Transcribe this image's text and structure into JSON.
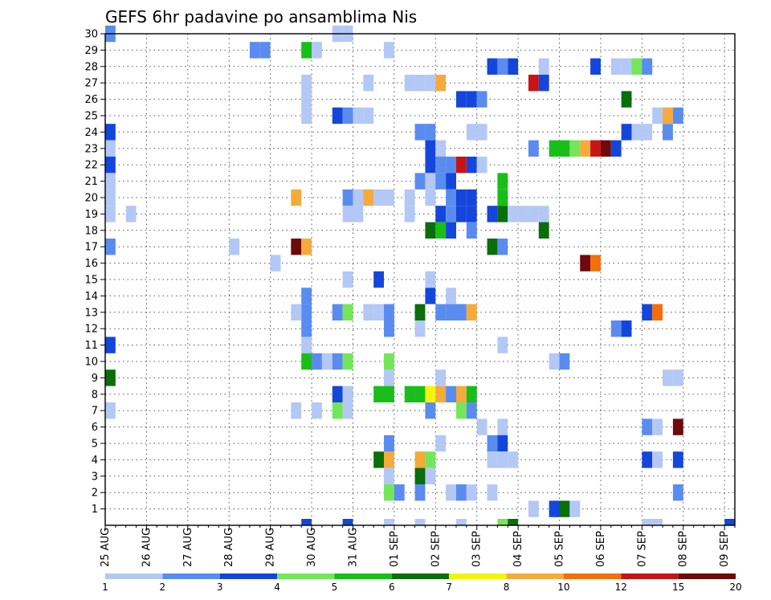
{
  "chart_data": {
    "type": "heatmap",
    "title": "GEFS 6hr padavine po ansamblima Nis",
    "x_ticks": [
      "25 AUG",
      "26 AUG",
      "27 AUG",
      "28 AUG",
      "29 AUG",
      "30 AUG",
      "31 AUG",
      "01 SEP",
      "02 SEP",
      "03 SEP",
      "04 SEP",
      "05 SEP",
      "06 SEP",
      "07 SEP",
      "08 SEP",
      "09 SEP"
    ],
    "y_ticks": [
      1,
      2,
      3,
      4,
      5,
      6,
      7,
      8,
      9,
      10,
      11,
      12,
      13,
      14,
      15,
      16,
      17,
      18,
      19,
      20,
      21,
      22,
      23,
      24,
      25,
      26,
      27,
      28,
      29,
      30
    ],
    "xlim": [
      0,
      61
    ],
    "ylim": [
      0,
      30
    ],
    "grid": true,
    "legend_position": "bottom",
    "legend": {
      "thresholds": [
        "1",
        "2",
        "3",
        "4",
        "5",
        "6",
        "7",
        "8",
        "10",
        "12",
        "15",
        "20"
      ],
      "colors": [
        "#b4c8f5",
        "#5a8cf0",
        "#1446dc",
        "#73e65a",
        "#19be19",
        "#0a6e0a",
        "#f5f50a",
        "#f5aa3c",
        "#f56e0a",
        "#c81414",
        "#6e0a0a"
      ]
    },
    "cells": [
      [
        0.5,
        30,
        1
      ],
      [
        0.5,
        24,
        2
      ],
      [
        0.5,
        23,
        0
      ],
      [
        0.5,
        22,
        2
      ],
      [
        0.5,
        21,
        0
      ],
      [
        0.5,
        20,
        0
      ],
      [
        0.5,
        19,
        0
      ],
      [
        0.5,
        17,
        1
      ],
      [
        0.5,
        11,
        2
      ],
      [
        0.5,
        9,
        5
      ],
      [
        0.5,
        7,
        0
      ],
      [
        2.5,
        19,
        0
      ],
      [
        14.5,
        29,
        1
      ],
      [
        15.5,
        29,
        1
      ],
      [
        12.5,
        17,
        0
      ],
      [
        16.5,
        16,
        0
      ],
      [
        18.5,
        17,
        10
      ],
      [
        19.5,
        17,
        7
      ],
      [
        19.5,
        29,
        4
      ],
      [
        20.5,
        29,
        0
      ],
      [
        19.5,
        27,
        0
      ],
      [
        19.5,
        26,
        0
      ],
      [
        19.5,
        25,
        0
      ],
      [
        18.5,
        20,
        7
      ],
      [
        19.5,
        14,
        1
      ],
      [
        19.5,
        13,
        1
      ],
      [
        18.5,
        13,
        0
      ],
      [
        19.5,
        12,
        1
      ],
      [
        19.5,
        11,
        0
      ],
      [
        19.5,
        10,
        4
      ],
      [
        20.5,
        10,
        1
      ],
      [
        21.5,
        10,
        0
      ],
      [
        22.5,
        10,
        1
      ],
      [
        23.5,
        10,
        3
      ],
      [
        18.5,
        7,
        0
      ],
      [
        20.5,
        7,
        0
      ],
      [
        22.5,
        30,
        0
      ],
      [
        23.5,
        30,
        0
      ],
      [
        22.5,
        25,
        2
      ],
      [
        23.5,
        25,
        1
      ],
      [
        24.5,
        25,
        0
      ],
      [
        25.5,
        25,
        0
      ],
      [
        23.5,
        20,
        1
      ],
      [
        24.5,
        20,
        0
      ],
      [
        25.5,
        20,
        7
      ],
      [
        26.5,
        20,
        0
      ],
      [
        27.5,
        20,
        0
      ],
      [
        23.5,
        19,
        0
      ],
      [
        24.5,
        19,
        0
      ],
      [
        23.5,
        15,
        0
      ],
      [
        26.5,
        15,
        2
      ],
      [
        22.5,
        13,
        1
      ],
      [
        23.5,
        13,
        3
      ],
      [
        22.5,
        8,
        2
      ],
      [
        23.5,
        8,
        0
      ],
      [
        22.5,
        7,
        3
      ],
      [
        23.5,
        7,
        0
      ],
      [
        25.5,
        13,
        0
      ],
      [
        26.5,
        13,
        0
      ],
      [
        27.5,
        13,
        1
      ],
      [
        27.5,
        12,
        1
      ],
      [
        27.5,
        10,
        3
      ],
      [
        27.5,
        9,
        0
      ],
      [
        26.5,
        8,
        4
      ],
      [
        27.5,
        8,
        4
      ],
      [
        26.5,
        4,
        5
      ],
      [
        27.5,
        4,
        7
      ],
      [
        27.5,
        3,
        0
      ],
      [
        27.5,
        2,
        3
      ],
      [
        28.5,
        2,
        1
      ],
      [
        27.5,
        5,
        1
      ],
      [
        27.5,
        29,
        0
      ],
      [
        25.5,
        27,
        0
      ],
      [
        29.5,
        27,
        0
      ],
      [
        30.5,
        27,
        0
      ],
      [
        31.5,
        27,
        0
      ],
      [
        32.5,
        27,
        7
      ],
      [
        29.5,
        20,
        0
      ],
      [
        29.5,
        19,
        0
      ],
      [
        30.5,
        24,
        1
      ],
      [
        31.5,
        24,
        1
      ],
      [
        31.5,
        23,
        2
      ],
      [
        32.5,
        23,
        0
      ],
      [
        31.5,
        22,
        2
      ],
      [
        32.5,
        22,
        1
      ],
      [
        33.5,
        22,
        1
      ],
      [
        34.5,
        22,
        9
      ],
      [
        35.5,
        22,
        2
      ],
      [
        30.5,
        21,
        1
      ],
      [
        31.5,
        21,
        0
      ],
      [
        32.5,
        21,
        1
      ],
      [
        33.5,
        21,
        2
      ],
      [
        31.5,
        20,
        0
      ],
      [
        33.5,
        20,
        1
      ],
      [
        34.5,
        20,
        2
      ],
      [
        35.5,
        20,
        2
      ],
      [
        32.5,
        19,
        2
      ],
      [
        33.5,
        19,
        1
      ],
      [
        34.5,
        19,
        2
      ],
      [
        35.5,
        19,
        2
      ],
      [
        31.5,
        18,
        5
      ],
      [
        32.5,
        18,
        4
      ],
      [
        33.5,
        18,
        2
      ],
      [
        30.5,
        13,
        5
      ],
      [
        31.5,
        14,
        2
      ],
      [
        32.5,
        13,
        1
      ],
      [
        33.5,
        13,
        1
      ],
      [
        34.5,
        13,
        1
      ],
      [
        35.5,
        13,
        7
      ],
      [
        30.5,
        12,
        0
      ],
      [
        31.5,
        15,
        0
      ],
      [
        33.5,
        14,
        0
      ],
      [
        29.5,
        8,
        4
      ],
      [
        30.5,
        8,
        4
      ],
      [
        31.5,
        8,
        6
      ],
      [
        32.5,
        8,
        7
      ],
      [
        33.5,
        8,
        1
      ],
      [
        34.5,
        8,
        7
      ],
      [
        35.5,
        8,
        4
      ],
      [
        31.5,
        7,
        1
      ],
      [
        34.5,
        7,
        3
      ],
      [
        35.5,
        7,
        1
      ],
      [
        32.5,
        9,
        0
      ],
      [
        30.5,
        4,
        7
      ],
      [
        31.5,
        4,
        3
      ],
      [
        31.5,
        3,
        0
      ],
      [
        30.5,
        3,
        5
      ],
      [
        30.5,
        2,
        1
      ],
      [
        32.5,
        5,
        0
      ],
      [
        33.5,
        2,
        0
      ],
      [
        34.5,
        2,
        1
      ],
      [
        35.5,
        2,
        0
      ],
      [
        37.5,
        2,
        0
      ],
      [
        37.5,
        28,
        2
      ],
      [
        38.5,
        28,
        1
      ],
      [
        39.5,
        28,
        2
      ],
      [
        34.5,
        26,
        2
      ],
      [
        35.5,
        26,
        2
      ],
      [
        36.5,
        26,
        1
      ],
      [
        35.5,
        24,
        0
      ],
      [
        36.5,
        24,
        0
      ],
      [
        36.5,
        22,
        0
      ],
      [
        38.5,
        21,
        4
      ],
      [
        38.5,
        20,
        4
      ],
      [
        37.5,
        19,
        2
      ],
      [
        38.5,
        19,
        5
      ],
      [
        39.5,
        19,
        0
      ],
      [
        40.5,
        19,
        0
      ],
      [
        41.5,
        19,
        0
      ],
      [
        42.5,
        19,
        0
      ],
      [
        35.5,
        18,
        1
      ],
      [
        37.5,
        17,
        5
      ],
      [
        38.5,
        17,
        1
      ],
      [
        36.5,
        6,
        0
      ],
      [
        38.5,
        6,
        0
      ],
      [
        38.5,
        11,
        0
      ],
      [
        37.5,
        5,
        1
      ],
      [
        38.5,
        5,
        2
      ],
      [
        37.5,
        4,
        0
      ],
      [
        38.5,
        4,
        0
      ],
      [
        39.5,
        4,
        0
      ],
      [
        42.5,
        28,
        0
      ],
      [
        41.5,
        27,
        9
      ],
      [
        42.5,
        27,
        2
      ],
      [
        41.5,
        23,
        1
      ],
      [
        43.5,
        23,
        4
      ],
      [
        44.5,
        23,
        4
      ],
      [
        45.5,
        23,
        3
      ],
      [
        46.5,
        23,
        7
      ],
      [
        47.5,
        23,
        9
      ],
      [
        48.5,
        23,
        10
      ],
      [
        49.5,
        23,
        2
      ],
      [
        42.5,
        18,
        5
      ],
      [
        46.5,
        16,
        10
      ],
      [
        47.5,
        16,
        8
      ],
      [
        43.5,
        10,
        0
      ],
      [
        44.5,
        10,
        1
      ],
      [
        41.5,
        1,
        0
      ],
      [
        43.5,
        1,
        2
      ],
      [
        44.5,
        1,
        5
      ],
      [
        45.5,
        1,
        0
      ],
      [
        47.5,
        28,
        2
      ],
      [
        49.5,
        28,
        0
      ],
      [
        50.5,
        28,
        0
      ],
      [
        51.5,
        28,
        3
      ],
      [
        52.5,
        28,
        1
      ],
      [
        50.5,
        26,
        5
      ],
      [
        53.5,
        25,
        0
      ],
      [
        54.5,
        25,
        7
      ],
      [
        55.5,
        25,
        1
      ],
      [
        50.5,
        24,
        2
      ],
      [
        51.5,
        24,
        0
      ],
      [
        52.5,
        24,
        0
      ],
      [
        54.5,
        24,
        1
      ],
      [
        49.5,
        12,
        1
      ],
      [
        50.5,
        12,
        2
      ],
      [
        52.5,
        13,
        2
      ],
      [
        53.5,
        13,
        8
      ],
      [
        54.5,
        9,
        0
      ],
      [
        55.5,
        9,
        0
      ],
      [
        52.5,
        6,
        1
      ],
      [
        53.5,
        6,
        0
      ],
      [
        55.5,
        6,
        10
      ],
      [
        52.5,
        4,
        2
      ],
      [
        53.5,
        4,
        0
      ],
      [
        55.5,
        4,
        2
      ],
      [
        55.5,
        2,
        1
      ]
    ],
    "row0_marks": [
      [
        19.5,
        2
      ],
      [
        23.5,
        2
      ],
      [
        27.5,
        0
      ],
      [
        30.5,
        0
      ],
      [
        34.5,
        0
      ],
      [
        38.5,
        3
      ],
      [
        39.5,
        5
      ],
      [
        52.5,
        0
      ],
      [
        53.5,
        0
      ],
      [
        60.5,
        2
      ]
    ]
  }
}
